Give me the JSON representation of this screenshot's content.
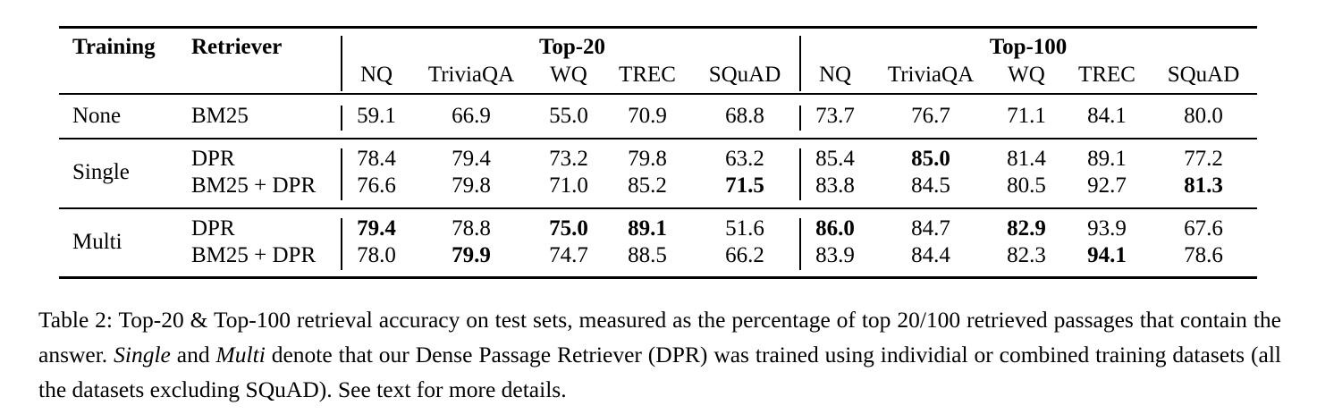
{
  "table": {
    "col_training": "Training",
    "col_retriever": "Retriever",
    "group_top20": "Top-20",
    "group_top100": "Top-100",
    "datasets": [
      "NQ",
      "TriviaQA",
      "WQ",
      "TREC",
      "SQuAD"
    ],
    "rows": [
      {
        "training": "None",
        "retriever": "BM25",
        "top20": [
          "59.1",
          "66.9",
          "55.0",
          "70.9",
          "68.8"
        ],
        "top100": [
          "73.7",
          "76.7",
          "71.1",
          "84.1",
          "80.0"
        ],
        "bold20": [
          false,
          false,
          false,
          false,
          false
        ],
        "bold100": [
          false,
          false,
          false,
          false,
          false
        ]
      },
      {
        "training": "Single",
        "retriever": "DPR",
        "top20": [
          "78.4",
          "79.4",
          "73.2",
          "79.8",
          "63.2"
        ],
        "top100": [
          "85.4",
          "85.0",
          "81.4",
          "89.1",
          "77.2"
        ],
        "bold20": [
          false,
          false,
          false,
          false,
          false
        ],
        "bold100": [
          false,
          true,
          false,
          false,
          false
        ]
      },
      {
        "training": "",
        "retriever": "BM25 + DPR",
        "top20": [
          "76.6",
          "79.8",
          "71.0",
          "85.2",
          "71.5"
        ],
        "top100": [
          "83.8",
          "84.5",
          "80.5",
          "92.7",
          "81.3"
        ],
        "bold20": [
          false,
          false,
          false,
          false,
          true
        ],
        "bold100": [
          false,
          false,
          false,
          false,
          true
        ]
      },
      {
        "training": "Multi",
        "retriever": "DPR",
        "top20": [
          "79.4",
          "78.8",
          "75.0",
          "89.1",
          "51.6"
        ],
        "top100": [
          "86.0",
          "84.7",
          "82.9",
          "93.9",
          "67.6"
        ],
        "bold20": [
          true,
          false,
          true,
          true,
          false
        ],
        "bold100": [
          true,
          false,
          true,
          false,
          false
        ]
      },
      {
        "training": "",
        "retriever": "BM25 + DPR",
        "top20": [
          "78.0",
          "79.9",
          "74.7",
          "88.5",
          "66.2"
        ],
        "top100": [
          "83.9",
          "84.4",
          "82.3",
          "94.1",
          "78.6"
        ],
        "bold20": [
          false,
          true,
          false,
          false,
          false
        ],
        "bold100": [
          false,
          false,
          false,
          true,
          false
        ]
      }
    ]
  },
  "caption": {
    "prefix": "Table 2: Top-20 & Top-100 retrieval accuracy on test sets, measured as the percentage of top 20/100 retrieved passages that contain the answer. ",
    "single": "Single",
    "and": " and ",
    "multi": "Multi",
    "suffix": " denote that our Dense Passage Retriever (DPR) was trained using individial or combined training datasets (all the datasets excluding SQuAD). See text for more details."
  }
}
